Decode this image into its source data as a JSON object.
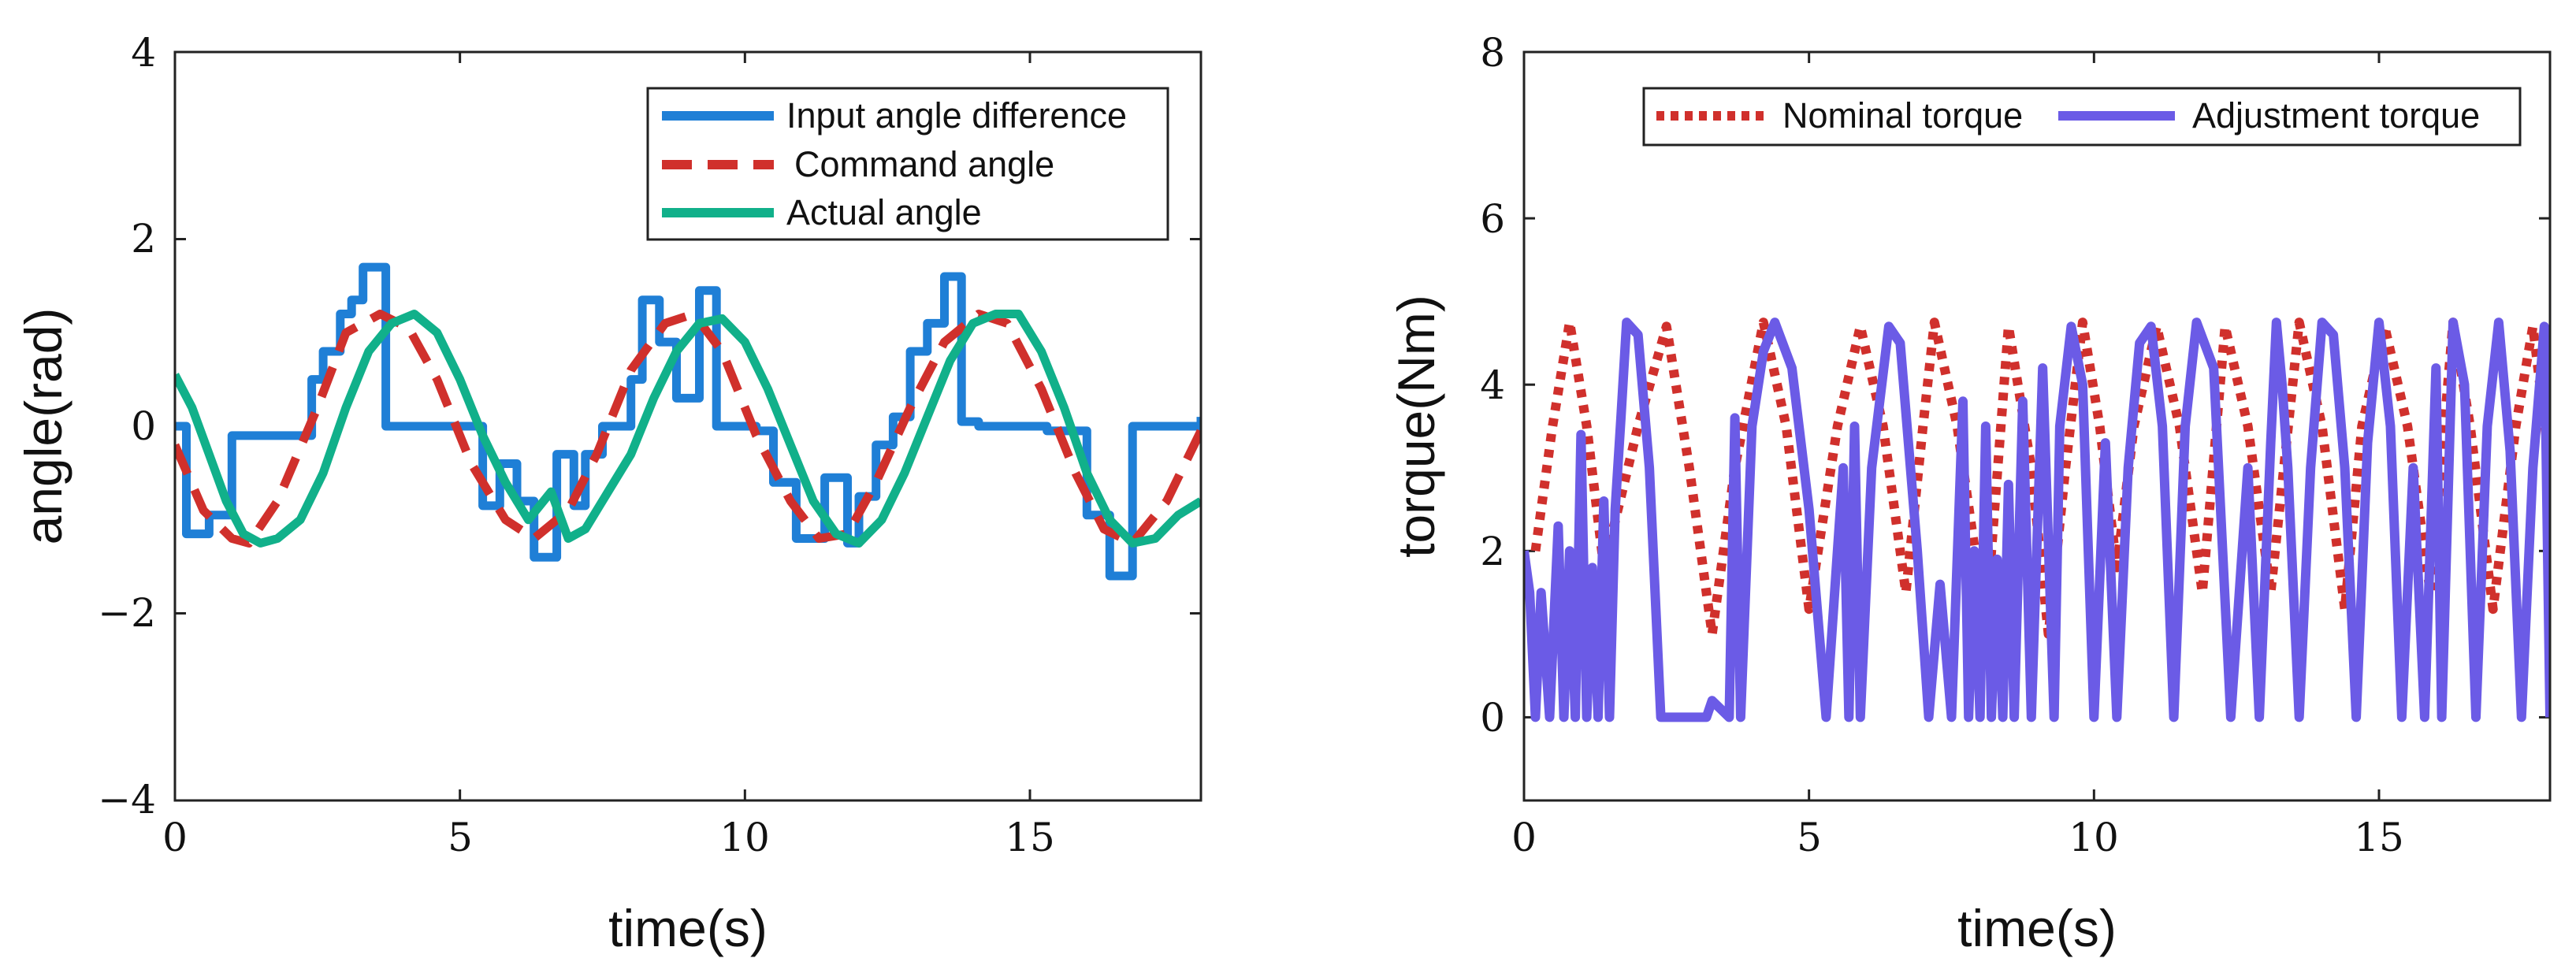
{
  "chart_data": [
    {
      "type": "line",
      "xlabel": "time(s)",
      "ylabel": "angle(rad)",
      "xlim": [
        0,
        18
      ],
      "ylim": [
        -4,
        4
      ],
      "xticks": [
        0,
        5,
        10,
        15
      ],
      "xtick_labels": [
        "0",
        "5",
        "10",
        "15"
      ],
      "yticks": [
        -4,
        -2,
        0,
        2,
        4
      ],
      "ytick_labels": [
        "−4",
        "−2",
        "0",
        "2",
        "4"
      ],
      "legend_position": "top-right",
      "series": [
        {
          "name": "Input angle difference",
          "style": "solid",
          "color": "#1f7fd6",
          "step": true,
          "x": [
            0,
            0.2,
            0.6,
            1.0,
            1.5,
            2.4,
            2.6,
            2.9,
            3.1,
            3.3,
            3.7,
            3.8,
            4.3,
            5.2,
            5.4,
            5.7,
            6.0,
            6.3,
            6.7,
            7.0,
            7.2,
            7.5,
            7.8,
            8.0,
            8.2,
            8.5,
            8.8,
            9.2,
            9.5,
            9.8,
            10.2,
            10.5,
            10.9,
            11.4,
            11.8,
            12.0,
            12.3,
            12.6,
            12.9,
            13.2,
            13.5,
            13.8,
            14.1,
            14.3,
            14.6,
            15.0,
            15.3,
            15.6,
            16.0,
            16.4,
            16.8,
            17.2,
            17.6,
            18.0
          ],
          "y": [
            0,
            -1.15,
            -0.95,
            -0.1,
            -0.1,
            0.5,
            0.8,
            1.2,
            1.35,
            1.7,
            0,
            0,
            0,
            0,
            -0.85,
            -0.4,
            -0.8,
            -1.4,
            -0.3,
            -0.85,
            -0.3,
            0.0,
            0.0,
            0.5,
            1.35,
            0.9,
            0.3,
            1.45,
            0.0,
            0.0,
            -0.05,
            -0.6,
            -1.2,
            -0.55,
            -1.25,
            -0.75,
            -0.2,
            0.1,
            0.8,
            1.1,
            1.6,
            0.05,
            0.0,
            0.0,
            0.0,
            0.0,
            -0.05,
            -0.05,
            -0.95,
            -1.6,
            0.0,
            0.0,
            0.0,
            0.1
          ]
        },
        {
          "name": "Command angle",
          "style": "dashed",
          "color": "#d0302c",
          "x": [
            0,
            0.5,
            1.0,
            1.3,
            1.8,
            2.5,
            3.0,
            3.6,
            4.1,
            4.6,
            5.2,
            5.8,
            6.3,
            6.9,
            7.4,
            8.0,
            8.6,
            9.1,
            9.6,
            10.2,
            10.8,
            11.3,
            11.8,
            12.3,
            12.9,
            13.5,
            14.1,
            14.6,
            15.2,
            15.8,
            16.3,
            16.8,
            17.4,
            18.0
          ],
          "y": [
            -0.2,
            -0.9,
            -1.2,
            -1.25,
            -0.8,
            0.2,
            1.0,
            1.2,
            1.05,
            0.5,
            -0.4,
            -1.0,
            -1.2,
            -0.9,
            -0.3,
            0.6,
            1.1,
            1.2,
            0.8,
            -0.1,
            -0.8,
            -1.2,
            -1.15,
            -0.6,
            0.2,
            0.9,
            1.2,
            1.1,
            0.4,
            -0.5,
            -1.1,
            -1.25,
            -0.8,
            -0.05
          ]
        },
        {
          "name": "Actual angle",
          "style": "solid",
          "color": "#11b08a",
          "x": [
            0,
            0.3,
            0.6,
            0.9,
            1.2,
            1.5,
            1.8,
            2.2,
            2.6,
            3.0,
            3.4,
            3.8,
            4.2,
            4.6,
            5.0,
            5.4,
            5.8,
            6.2,
            6.6,
            6.9,
            7.2,
            7.6,
            8.0,
            8.4,
            8.8,
            9.2,
            9.6,
            10.0,
            10.4,
            10.8,
            11.2,
            11.6,
            12.0,
            12.4,
            12.8,
            13.2,
            13.6,
            14.0,
            14.4,
            14.8,
            15.2,
            15.6,
            16.0,
            16.4,
            16.8,
            17.2,
            17.6,
            18.0
          ],
          "y": [
            0.55,
            0.2,
            -0.3,
            -0.8,
            -1.15,
            -1.25,
            -1.2,
            -1.0,
            -0.5,
            0.2,
            0.8,
            1.1,
            1.2,
            1.0,
            0.5,
            -0.1,
            -0.6,
            -1.0,
            -0.7,
            -1.2,
            -1.1,
            -0.7,
            -0.3,
            0.3,
            0.8,
            1.1,
            1.15,
            0.9,
            0.4,
            -0.2,
            -0.8,
            -1.15,
            -1.25,
            -1.0,
            -0.5,
            0.1,
            0.7,
            1.1,
            1.2,
            1.2,
            0.8,
            0.2,
            -0.5,
            -1.0,
            -1.25,
            -1.2,
            -0.95,
            -0.8
          ]
        }
      ]
    },
    {
      "type": "line",
      "xlabel": "time(s)",
      "ylabel": "torque(Nm)",
      "xlim": [
        0,
        18
      ],
      "ylim": [
        -1,
        8
      ],
      "xticks": [
        0,
        5,
        10,
        15
      ],
      "xtick_labels": [
        "0",
        "5",
        "10",
        "15"
      ],
      "yticks": [
        0,
        2,
        4,
        6,
        8
      ],
      "ytick_labels": [
        "0",
        "2",
        "4",
        "6",
        "8"
      ],
      "legend_position": "top-right",
      "series": [
        {
          "name": "Nominal torque",
          "style": "dotted",
          "color": "#d0302c",
          "x": [
            0.2,
            0.5,
            0.8,
            1.1,
            1.4,
            2.0,
            2.5,
            2.9,
            3.3,
            3.7,
            4.2,
            4.6,
            5.0,
            5.5,
            5.9,
            6.3,
            6.7,
            7.0,
            7.2,
            7.6,
            8.1,
            8.5,
            8.9,
            9.2,
            9.5,
            9.8,
            10.1,
            10.4,
            10.7,
            11.1,
            11.5,
            11.9,
            12.3,
            12.7,
            13.1,
            13.6,
            14.0,
            14.4,
            14.7,
            15.1,
            15.5,
            15.9,
            16.3,
            16.6,
            17.0,
            17.4,
            17.7,
            18.0
          ],
          "y": [
            2.0,
            3.5,
            4.75,
            3.5,
            1.8,
            3.5,
            4.7,
            3.0,
            1.0,
            3.0,
            4.75,
            3.5,
            1.3,
            3.5,
            4.7,
            3.5,
            1.5,
            3.5,
            4.75,
            3.5,
            1.1,
            4.7,
            3.0,
            1.0,
            3.0,
            4.75,
            3.5,
            1.8,
            3.5,
            4.7,
            3.5,
            1.5,
            4.7,
            3.5,
            1.5,
            4.75,
            3.5,
            1.3,
            3.5,
            4.7,
            3.5,
            1.5,
            4.75,
            3.5,
            1.3,
            3.5,
            4.7,
            3.0
          ]
        },
        {
          "name": "Adjustment torque",
          "style": "solid",
          "color": "#6b5be6",
          "x": [
            0.0,
            0.1,
            0.2,
            0.3,
            0.45,
            0.6,
            0.7,
            0.8,
            0.9,
            1.0,
            1.1,
            1.2,
            1.3,
            1.4,
            1.5,
            1.6,
            1.7,
            1.8,
            2.0,
            2.2,
            2.4,
            2.6,
            2.75,
            3.2,
            3.3,
            3.6,
            3.7,
            3.8,
            4.0,
            4.2,
            4.4,
            4.7,
            5.0,
            5.3,
            5.5,
            5.6,
            5.7,
            5.8,
            5.9,
            6.1,
            6.4,
            6.6,
            6.9,
            7.1,
            7.3,
            7.5,
            7.7,
            7.8,
            7.9,
            8.0,
            8.1,
            8.2,
            8.3,
            8.4,
            8.5,
            8.6,
            8.75,
            8.9,
            9.1,
            9.3,
            9.4,
            9.6,
            9.8,
            10.0,
            10.2,
            10.4,
            10.6,
            10.8,
            11.0,
            11.2,
            11.4,
            11.6,
            11.8,
            12.1,
            12.4,
            12.7,
            12.9,
            13.1,
            13.2,
            13.3,
            13.4,
            13.6,
            13.8,
            14.0,
            14.2,
            14.4,
            14.6,
            14.8,
            15.0,
            15.2,
            15.4,
            15.6,
            15.8,
            16.0,
            16.1,
            16.3,
            16.5,
            16.7,
            16.9,
            17.1,
            17.3,
            17.5,
            17.7,
            17.9,
            18.0
          ],
          "y": [
            2.0,
            1.5,
            0.0,
            1.5,
            0.0,
            2.3,
            0.0,
            2.0,
            0.0,
            3.4,
            0.0,
            1.8,
            0.0,
            2.6,
            0.0,
            2.5,
            3.6,
            4.75,
            4.6,
            3.0,
            0.0,
            0.0,
            0.0,
            0.0,
            0.2,
            0.0,
            3.6,
            0.0,
            3.5,
            4.4,
            4.75,
            4.2,
            2.5,
            0.0,
            2.0,
            3.0,
            0.0,
            3.5,
            0.0,
            3.0,
            4.7,
            4.5,
            2.0,
            0.0,
            1.6,
            0.0,
            3.8,
            0.0,
            2.0,
            0.0,
            3.5,
            0.0,
            1.9,
            0.0,
            2.8,
            0.0,
            3.8,
            0.0,
            4.2,
            0.0,
            3.5,
            4.7,
            4.0,
            0.0,
            3.3,
            0.0,
            3.0,
            4.5,
            4.7,
            3.5,
            0.0,
            3.5,
            4.75,
            4.2,
            0.0,
            3.0,
            0.0,
            3.3,
            4.75,
            4.0,
            3.0,
            0.0,
            3.0,
            4.75,
            4.6,
            3.0,
            0.0,
            3.3,
            4.75,
            3.5,
            0.0,
            3.0,
            0.0,
            4.2,
            0.0,
            4.75,
            4.0,
            0.0,
            3.5,
            4.75,
            3.2,
            0.0,
            3.0,
            4.7,
            0.0
          ]
        }
      ]
    }
  ]
}
